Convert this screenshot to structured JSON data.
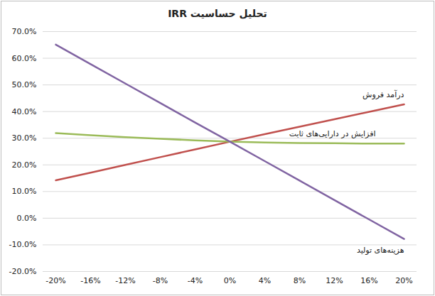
{
  "chart_data": {
    "type": "line",
    "title": "تحلیل حساسیت IRR",
    "categories": [
      "-20%",
      "-16%",
      "-12%",
      "-8%",
      "-4%",
      "0%",
      "4%",
      "8%",
      "12%",
      "16%",
      "20%"
    ],
    "series": [
      {
        "name": "درآمد فروش",
        "color": "#c0504d",
        "values": [
          14.2,
          17.1,
          20.0,
          22.9,
          25.8,
          28.7,
          31.5,
          34.3,
          37.1,
          39.9,
          42.7
        ]
      },
      {
        "name": "افزایش در دارایی‌های ثابت",
        "color": "#9bbb59",
        "values": [
          31.9,
          31.1,
          30.4,
          29.8,
          29.2,
          28.7,
          28.4,
          28.2,
          28.1,
          28.0,
          28.0
        ]
      },
      {
        "name": "هزینه‌های تولید",
        "color": "#8064a2",
        "values": [
          65.1,
          57.8,
          50.5,
          43.2,
          35.9,
          28.7,
          21.4,
          14.1,
          6.8,
          -0.5,
          -7.8
        ]
      }
    ],
    "ylim": [
      -20,
      70
    ],
    "yticks": [
      {
        "value": -20,
        "label": "-20.0%"
      },
      {
        "value": -10,
        "label": "-10.0%"
      },
      {
        "value": 0,
        "label": "0.0%"
      },
      {
        "value": 10,
        "label": "10.0%"
      },
      {
        "value": 20,
        "label": "20.0%"
      },
      {
        "value": 30,
        "label": "30.0%"
      },
      {
        "value": 40,
        "label": "40.0%"
      },
      {
        "value": 50,
        "label": "50.0%"
      },
      {
        "value": 60,
        "label": "60.0%"
      },
      {
        "value": 70,
        "label": "70.0%"
      }
    ],
    "grid": true
  }
}
